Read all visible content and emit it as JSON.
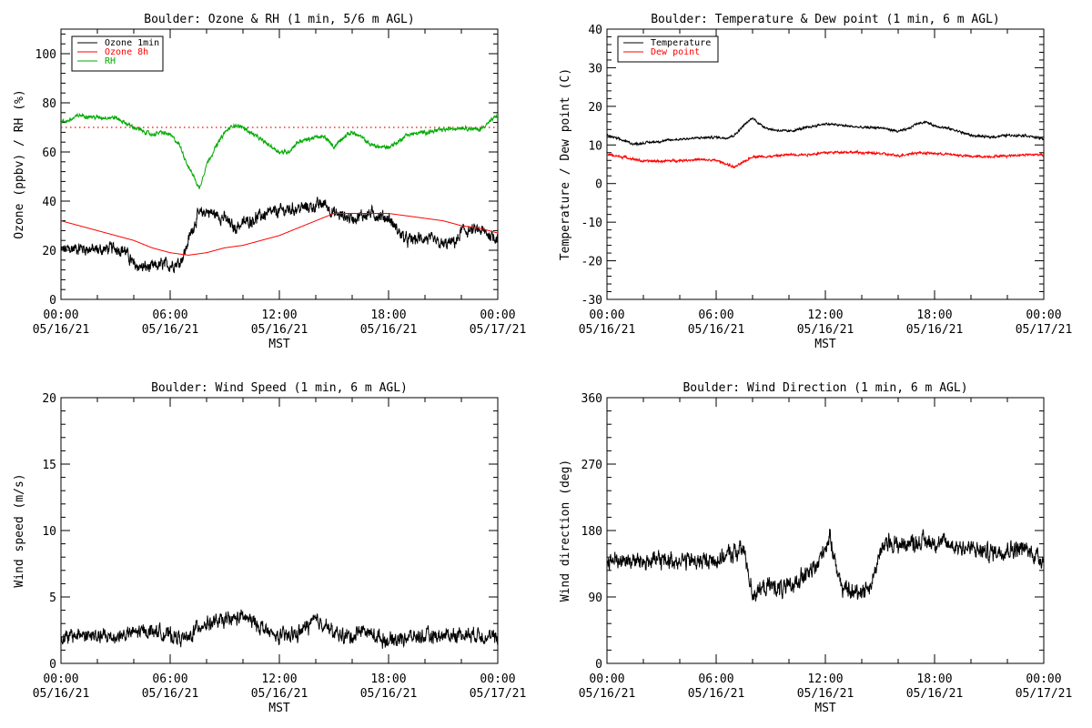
{
  "colors": {
    "black": "#000000",
    "red": "#ff0000",
    "green": "#00aa00"
  },
  "chart_data": [
    {
      "type": "line",
      "title": "Boulder: Ozone & RH (1 min, 5/6 m AGL)",
      "ylabel": "Ozone (ppbv) / RH (%)",
      "xlabel": "MST",
      "ylim": [
        0,
        110
      ],
      "yticks": [
        0,
        20,
        40,
        60,
        80,
        100
      ],
      "xlim": [
        0,
        24
      ],
      "xticks": [
        0,
        6,
        12,
        18,
        24
      ],
      "xtick_labels": [
        {
          "time": "00:00",
          "date": "05/16/21"
        },
        {
          "time": "06:00",
          "date": "05/16/21"
        },
        {
          "time": "12:00",
          "date": "05/16/21"
        },
        {
          "time": "18:00",
          "date": "05/16/21"
        },
        {
          "time": "00:00",
          "date": "05/17/21"
        }
      ],
      "legend": {
        "placement": "top-left",
        "entries": [
          {
            "name": "Ozone 1min",
            "color": "#000000"
          },
          {
            "name": "Ozone 8h",
            "color": "#ff0000"
          },
          {
            "name": "RH",
            "color": "#00aa00"
          }
        ]
      },
      "hline": {
        "y": 70,
        "color": "#ff0000",
        "style": "dotted"
      },
      "series": [
        {
          "name": "Ozone 1min",
          "color": "#000000",
          "noise": 2.5,
          "x": [
            0,
            1,
            2,
            3,
            3.5,
            4,
            4.5,
            5,
            5.5,
            6,
            6.5,
            6.8,
            7,
            7.5,
            8,
            9,
            9.5,
            10,
            11,
            12,
            13,
            14,
            14.5,
            15,
            16,
            17,
            17.5,
            18,
            18.5,
            19,
            20,
            21,
            21.8,
            22,
            23,
            24
          ],
          "y": [
            20,
            21,
            20,
            21,
            20,
            14,
            13,
            13,
            14,
            14,
            15,
            19,
            24,
            34,
            36,
            33,
            29,
            31,
            34,
            36,
            37,
            38,
            39,
            35,
            33,
            35,
            34,
            33,
            28,
            24,
            25,
            22,
            24,
            28,
            28,
            25
          ]
        },
        {
          "name": "Ozone 8h",
          "color": "#ff0000",
          "noise": 0,
          "x": [
            0,
            1,
            2,
            3,
            4,
            5,
            6,
            7,
            8,
            9,
            10,
            11,
            12,
            13,
            14,
            15,
            16,
            17,
            18,
            19,
            20,
            21,
            22,
            23,
            24
          ],
          "y": [
            32,
            30,
            28,
            26,
            24,
            21,
            19,
            18,
            19,
            21,
            22,
            24,
            26,
            29,
            32,
            35,
            35,
            35,
            35,
            34,
            33,
            32,
            30,
            29,
            27
          ]
        },
        {
          "name": "RH",
          "color": "#00aa00",
          "noise": 0.8,
          "x": [
            0,
            0.5,
            1,
            2,
            3,
            4,
            5,
            5.5,
            6,
            6.5,
            7,
            7.3,
            7.6,
            8,
            8.5,
            9,
            9.5,
            10,
            11,
            12,
            12.5,
            13,
            14,
            14.5,
            15,
            15.5,
            16,
            16.5,
            17,
            17.5,
            18,
            18.5,
            19,
            20,
            21,
            22,
            23,
            23.5,
            24
          ],
          "y": [
            72,
            73,
            75,
            74,
            74,
            70,
            67,
            68,
            67,
            63,
            54,
            50,
            45,
            55,
            62,
            68,
            71,
            70,
            65,
            60,
            60,
            64,
            66,
            66,
            62,
            66,
            68,
            66,
            63,
            62,
            62,
            64,
            67,
            68,
            69,
            70,
            69,
            72,
            75
          ]
        }
      ]
    },
    {
      "type": "line",
      "title": "Boulder: Temperature & Dew point (1 min, 6 m AGL)",
      "ylabel": "Temperature / Dew point (C)",
      "xlabel": "MST",
      "ylim": [
        -30,
        40
      ],
      "yticks": [
        -30,
        -20,
        -10,
        0,
        10,
        20,
        30,
        40
      ],
      "xlim": [
        0,
        24
      ],
      "xticks": [
        0,
        6,
        12,
        18,
        24
      ],
      "xtick_labels": [
        {
          "time": "00:00",
          "date": "05/16/21"
        },
        {
          "time": "06:00",
          "date": "05/16/21"
        },
        {
          "time": "12:00",
          "date": "05/16/21"
        },
        {
          "time": "18:00",
          "date": "05/16/21"
        },
        {
          "time": "00:00",
          "date": "05/17/21"
        }
      ],
      "legend": {
        "placement": "top-left",
        "entries": [
          {
            "name": "Temperature",
            "color": "#000000"
          },
          {
            "name": "Dew point",
            "color": "#ff0000"
          }
        ]
      },
      "series": [
        {
          "name": "Temperature",
          "color": "#000000",
          "noise": 0.3,
          "x": [
            0,
            1,
            1.5,
            2,
            3,
            4,
            5,
            6,
            6.5,
            7,
            7.5,
            8,
            8.5,
            9,
            10,
            11,
            12,
            13,
            14,
            15,
            16,
            16.5,
            17,
            17.5,
            18,
            19,
            20,
            21,
            22,
            23,
            24
          ],
          "y": [
            12.5,
            11,
            10.2,
            10.5,
            11,
            11.5,
            11.8,
            12,
            11.8,
            12.5,
            15,
            17,
            15,
            14,
            13.5,
            14.5,
            15.5,
            15,
            14.5,
            14.5,
            13.5,
            14,
            15.5,
            16,
            15,
            14,
            12.5,
            12,
            12.5,
            12.5,
            11.5
          ]
        },
        {
          "name": "Dew point",
          "color": "#ff0000",
          "noise": 0.3,
          "x": [
            0,
            1,
            2,
            3,
            4,
            5,
            6,
            6.5,
            7,
            7.5,
            8,
            9,
            10,
            11,
            12,
            13,
            14,
            15,
            16,
            17,
            18,
            19,
            20,
            21,
            22,
            23,
            24
          ],
          "y": [
            7.5,
            6.8,
            5.8,
            5.8,
            6,
            6.2,
            6,
            5.2,
            4.2,
            5.5,
            7,
            7,
            7.5,
            7.5,
            8,
            8.2,
            8,
            7.8,
            7.2,
            8,
            7.8,
            7.5,
            7,
            7,
            7.2,
            7.5,
            7.5
          ]
        }
      ]
    },
    {
      "type": "line",
      "title": "Boulder: Wind Speed (1 min, 6 m AGL)",
      "ylabel": "Wind speed (m/s)",
      "xlabel": "MST",
      "ylim": [
        0,
        20
      ],
      "yticks": [
        0,
        5,
        10,
        15,
        20
      ],
      "xlim": [
        0,
        24
      ],
      "xticks": [
        0,
        6,
        12,
        18,
        24
      ],
      "xtick_labels": [
        {
          "time": "00:00",
          "date": "05/16/21"
        },
        {
          "time": "06:00",
          "date": "05/16/21"
        },
        {
          "time": "12:00",
          "date": "05/16/21"
        },
        {
          "time": "18:00",
          "date": "05/16/21"
        },
        {
          "time": "00:00",
          "date": "05/17/21"
        }
      ],
      "series": [
        {
          "name": "Wind speed",
          "color": "#000000",
          "noise": 0.55,
          "x": [
            0,
            1,
            2,
            3,
            4,
            5,
            6,
            7,
            7.5,
            8,
            9,
            10,
            11,
            11.5,
            12,
            13,
            13.5,
            14,
            14.5,
            15,
            16,
            16.5,
            17,
            18,
            19,
            20,
            21,
            22,
            23,
            24
          ],
          "y": [
            1.8,
            2.2,
            2,
            2,
            2.3,
            2.5,
            2.1,
            1.8,
            2.8,
            3,
            3.2,
            3.5,
            2.8,
            2.2,
            2,
            2.2,
            2.8,
            3.2,
            3,
            2.2,
            2,
            2.6,
            2.2,
            1.7,
            2,
            2,
            2.1,
            2.2,
            2.2,
            1.8
          ]
        }
      ]
    },
    {
      "type": "line",
      "title": "Boulder: Wind Direction (1 min, 6 m AGL)",
      "ylabel": "Wind direction (deg)",
      "xlabel": "MST",
      "ylim": [
        0,
        360
      ],
      "yticks": [
        0,
        90,
        180,
        270,
        360
      ],
      "xlim": [
        0,
        24
      ],
      "xticks": [
        0,
        6,
        12,
        18,
        24
      ],
      "xtick_labels": [
        {
          "time": "00:00",
          "date": "05/16/21"
        },
        {
          "time": "06:00",
          "date": "05/16/21"
        },
        {
          "time": "12:00",
          "date": "05/16/21"
        },
        {
          "time": "18:00",
          "date": "05/16/21"
        },
        {
          "time": "00:00",
          "date": "05/17/21"
        }
      ],
      "series": [
        {
          "name": "Wind direction",
          "color": "#000000",
          "noise": 12,
          "x": [
            0,
            1,
            2,
            3,
            4,
            5,
            6,
            7,
            7.5,
            8,
            8.5,
            9,
            10,
            10.5,
            11,
            11.5,
            12,
            12.3,
            12.7,
            13,
            13.5,
            14,
            14.5,
            15,
            15.5,
            16,
            17,
            18,
            19,
            20,
            21,
            22,
            23,
            24
          ],
          "y": [
            140,
            140,
            138,
            140,
            140,
            138,
            140,
            150,
            155,
            95,
            100,
            105,
            100,
            115,
            120,
            130,
            160,
            170,
            120,
            100,
            95,
            100,
            105,
            150,
            165,
            160,
            165,
            165,
            160,
            155,
            150,
            155,
            155,
            140
          ]
        }
      ]
    }
  ]
}
